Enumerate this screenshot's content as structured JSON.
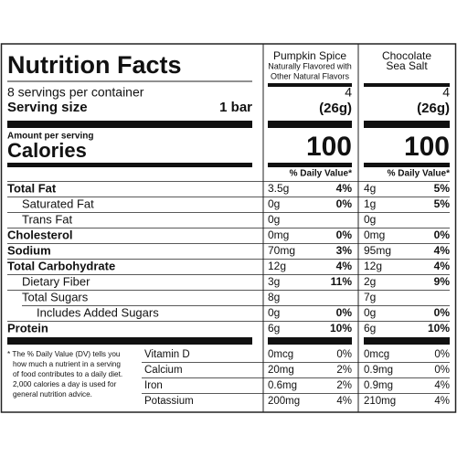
{
  "header": {
    "title": "Nutrition Facts",
    "servings": "8 servings per container",
    "serving_size_label": "Serving size",
    "serving_size_value": "1 bar",
    "amount_per_serving": "Amount per serving",
    "calories_label": "Calories"
  },
  "columns": [
    {
      "lines": [
        "Pumpkin Spice",
        "Naturally Flavored with",
        "Other Natural Flavors"
      ],
      "servings": "4",
      "weight": "(26g)",
      "calories": "100",
      "dv_header": "% Daily Value*"
    },
    {
      "lines": [
        "Chocolate",
        "Sea Salt"
      ],
      "servings": "4",
      "weight": "(26g)",
      "calories": "100",
      "dv_header": "% Daily Value*"
    }
  ],
  "nutrients": [
    {
      "label": "Total Fat",
      "bold": true,
      "indent": 0,
      "products": [
        {
          "amount": "3.5g",
          "dv": "4%"
        },
        {
          "amount": "4g",
          "dv": "5%"
        }
      ]
    },
    {
      "label": "Saturated Fat",
      "bold": false,
      "indent": 1,
      "products": [
        {
          "amount": "0g",
          "dv": "0%"
        },
        {
          "amount": "1g",
          "dv": "5%"
        }
      ]
    },
    {
      "label": "Trans Fat",
      "bold": false,
      "indent": 1,
      "products": [
        {
          "amount": "0g"
        },
        {
          "amount": "0g"
        }
      ]
    },
    {
      "label": "Cholesterol",
      "bold": true,
      "indent": 0,
      "products": [
        {
          "amount": "0mg",
          "dv": "0%"
        },
        {
          "amount": "0mg",
          "dv": "0%"
        }
      ]
    },
    {
      "label": "Sodium",
      "bold": true,
      "indent": 0,
      "products": [
        {
          "amount": "70mg",
          "dv": "3%"
        },
        {
          "amount": "95mg",
          "dv": "4%"
        }
      ]
    },
    {
      "label": "Total Carbohydrate",
      "bold": true,
      "indent": 0,
      "products": [
        {
          "amount": "12g",
          "dv": "4%"
        },
        {
          "amount": "12g",
          "dv": "4%"
        }
      ]
    },
    {
      "label": "Dietary Fiber",
      "bold": false,
      "indent": 1,
      "products": [
        {
          "amount": "3g",
          "dv": "11%"
        },
        {
          "amount": "2g",
          "dv": "9%"
        }
      ]
    },
    {
      "label": "Total Sugars",
      "bold": false,
      "indent": 1,
      "products": [
        {
          "amount": "8g"
        },
        {
          "amount": "7g"
        }
      ]
    },
    {
      "label": "Includes Added Sugars",
      "bold": false,
      "indent": 2,
      "products": [
        {
          "amount": "0g",
          "dv": "0%"
        },
        {
          "amount": "0g",
          "dv": "0%"
        }
      ]
    },
    {
      "label": "Protein",
      "bold": true,
      "indent": 0,
      "products": [
        {
          "amount": "6g",
          "dv": "10%"
        },
        {
          "amount": "6g",
          "dv": "10%"
        }
      ]
    }
  ],
  "vitamins": [
    {
      "label": "Vitamin D",
      "products": [
        {
          "amount": "0mcg",
          "dv": "0%"
        },
        {
          "amount": "0mcg",
          "dv": "0%"
        }
      ]
    },
    {
      "label": "Calcium",
      "products": [
        {
          "amount": "20mg",
          "dv": "2%"
        },
        {
          "amount": "0.9mg",
          "dv": "0%"
        }
      ]
    },
    {
      "label": "Iron",
      "products": [
        {
          "amount": "0.6mg",
          "dv": "2%"
        },
        {
          "amount": "0.9mg",
          "dv": "4%"
        }
      ]
    },
    {
      "label": "Potassium",
      "products": [
        {
          "amount": "200mg",
          "dv": "4%"
        },
        {
          "amount": "210mg",
          "dv": "4%"
        }
      ]
    }
  ],
  "footnote": [
    "* The % Daily Value (DV) tells you",
    "how much a nutrient in a serving",
    "of food contributes to a daily diet.",
    "2,000 calories a day is used for",
    "general nutrition advice."
  ]
}
